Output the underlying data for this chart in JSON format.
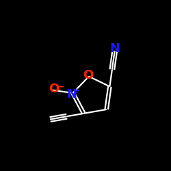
{
  "background_color": "#000000",
  "bond_color": "#ffffff",
  "figsize": [
    2.5,
    2.5
  ],
  "dpi": 100,
  "atoms": {
    "N_nitrile": {
      "label": "N",
      "color": "#1a1aff",
      "fontsize": 14
    },
    "O_ring": {
      "label": "O",
      "color": "#ff2200",
      "fontsize": 14
    },
    "N_ring": {
      "label": "N",
      "color": "#1a1aff",
      "fontsize": 13
    },
    "O_minus": {
      "label": "O",
      "color": "#ff2200",
      "fontsize": 14
    },
    "minus_sign": {
      "label": "−",
      "color": "#ff2200",
      "fontsize": 9
    },
    "plus_sign": {
      "label": "+",
      "color": "#1a1aff",
      "fontsize": 8
    }
  }
}
